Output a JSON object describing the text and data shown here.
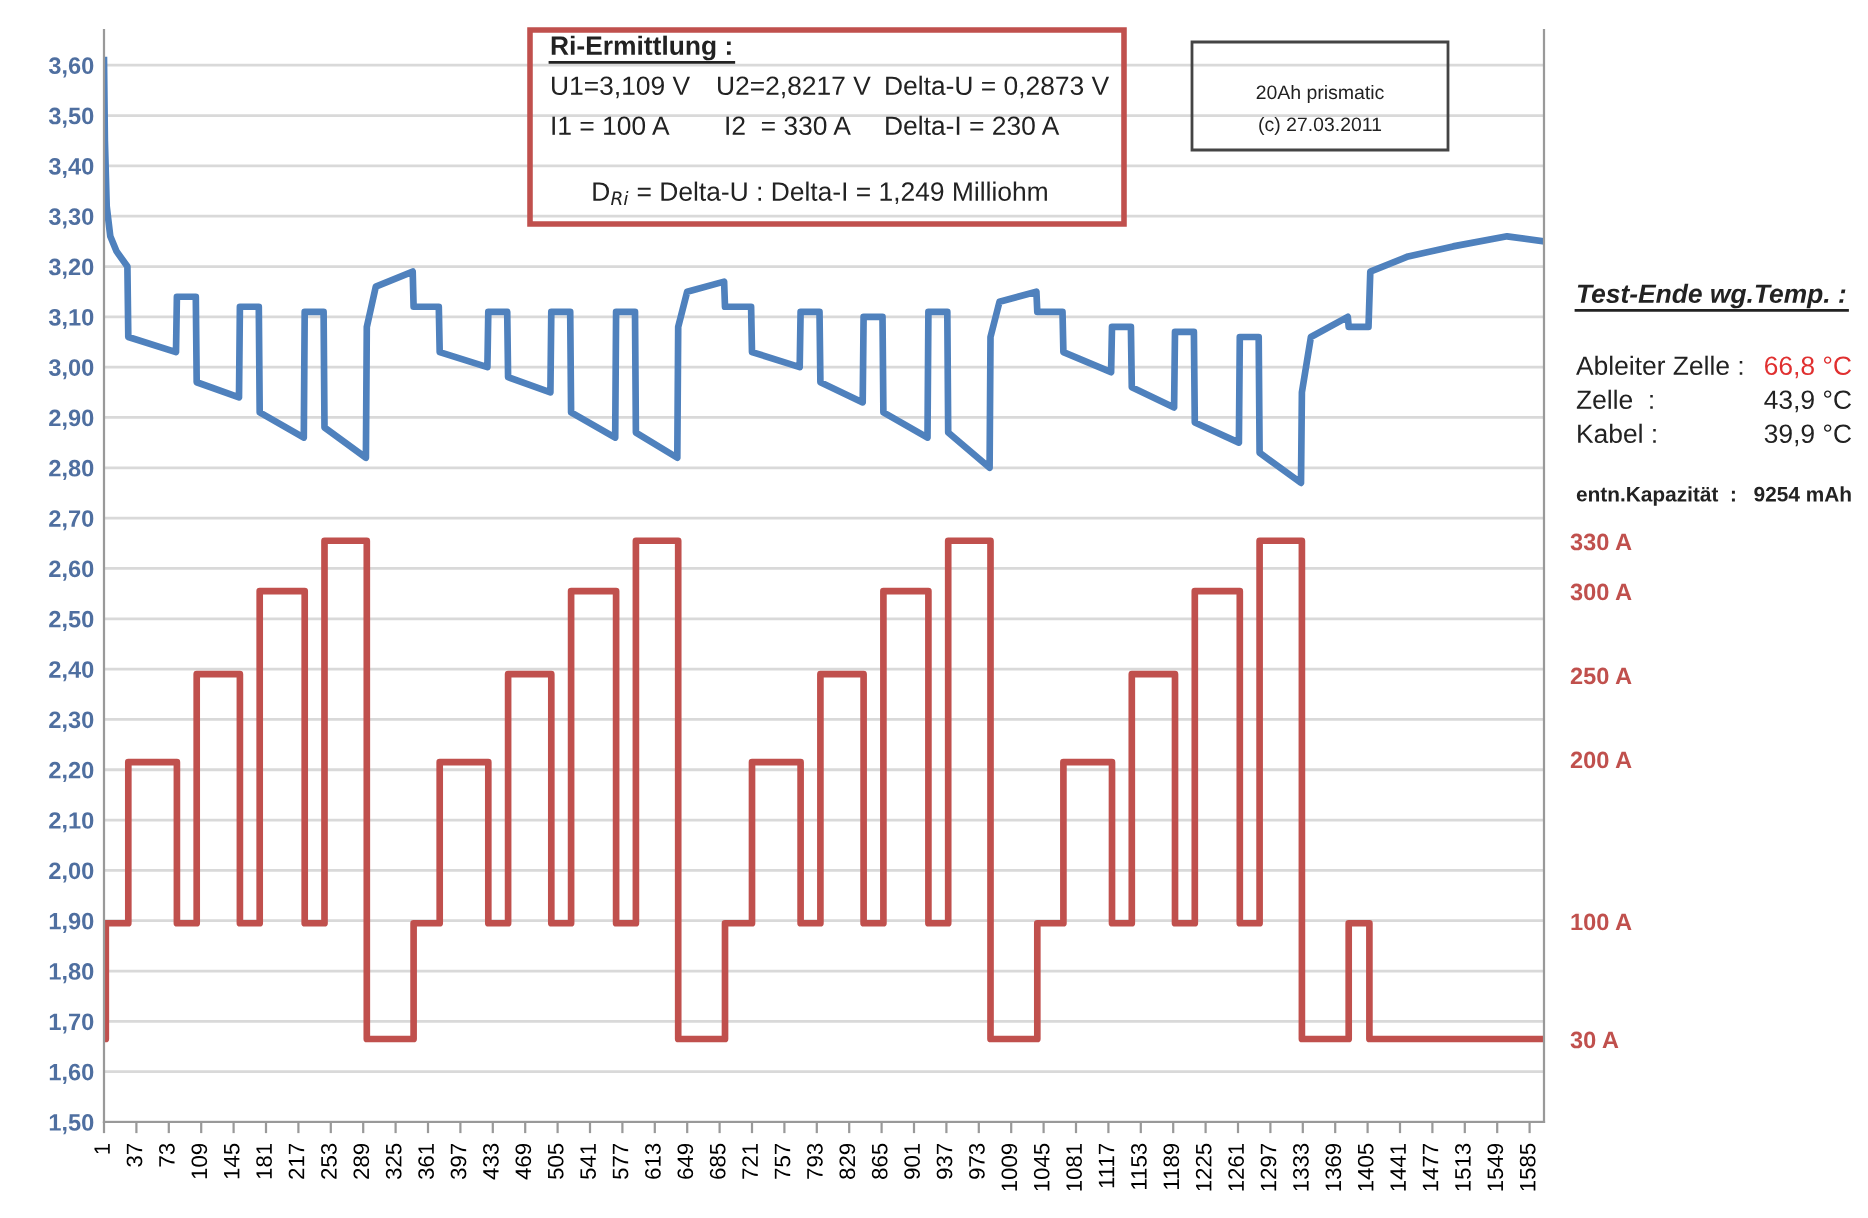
{
  "chart_data": {
    "type": "line",
    "x": [
      1,
      2,
      4,
      8,
      15,
      27,
      28,
      81,
      82,
      103,
      104,
      151,
      152,
      173,
      174,
      223,
      224,
      245,
      246,
      292,
      293,
      303,
      344,
      345,
      373,
      374,
      427,
      428,
      449,
      450,
      497,
      498,
      519,
      520,
      569,
      570,
      591,
      592,
      638,
      639,
      649,
      690,
      691,
      720,
      721,
      774,
      775,
      796,
      797,
      844,
      845,
      866,
      867,
      916,
      917,
      938,
      939,
      985,
      986,
      996,
      1037,
      1038,
      1066,
      1067,
      1120,
      1121,
      1142,
      1143,
      1190,
      1191,
      1212,
      1213,
      1262,
      1263,
      1284,
      1285,
      1331,
      1332,
      1342,
      1383,
      1384,
      1406,
      1408,
      1450,
      1500,
      1560,
      1601
    ],
    "series": [
      {
        "color": "#4f81bd",
        "values": [
          3.61,
          3.45,
          3.32,
          3.26,
          3.23,
          3.2,
          3.06,
          3.03,
          3.14,
          3.14,
          2.97,
          2.94,
          3.12,
          3.12,
          2.91,
          2.86,
          3.11,
          3.11,
          2.88,
          2.82,
          3.08,
          3.16,
          3.19,
          3.12,
          3.12,
          3.03,
          3.0,
          3.11,
          3.11,
          2.98,
          2.95,
          3.11,
          3.11,
          2.91,
          2.86,
          3.11,
          3.11,
          2.87,
          2.82,
          3.08,
          3.15,
          3.17,
          3.12,
          3.12,
          3.03,
          3.0,
          3.11,
          3.11,
          2.97,
          2.93,
          3.1,
          3.1,
          2.91,
          2.86,
          3.11,
          3.11,
          2.87,
          2.8,
          3.06,
          3.13,
          3.15,
          3.11,
          3.11,
          3.03,
          2.99,
          3.08,
          3.08,
          2.96,
          2.92,
          3.07,
          3.07,
          2.89,
          2.85,
          3.06,
          3.06,
          2.83,
          2.77,
          2.95,
          3.06,
          3.1,
          3.08,
          3.08,
          3.19,
          3.22,
          3.24,
          3.26,
          3.25
        ]
      },
      {
        "type": "step",
        "color": "#c0504d",
        "x": [
          1,
          3,
          28,
          82,
          104,
          152,
          174,
          224,
          246,
          293,
          345,
          374,
          428,
          450,
          498,
          520,
          570,
          592,
          639,
          691,
          721,
          775,
          797,
          845,
          867,
          917,
          939,
          986,
          1038,
          1067,
          1121,
          1143,
          1191,
          1213,
          1263,
          1285,
          1332,
          1384,
          1407,
          1601
        ],
        "values": [
          1.665,
          1.895,
          2.215,
          1.895,
          2.39,
          1.895,
          2.555,
          1.895,
          2.655,
          1.665,
          1.895,
          2.215,
          1.895,
          2.39,
          1.895,
          2.555,
          1.895,
          2.655,
          1.665,
          1.895,
          2.215,
          1.895,
          2.39,
          1.895,
          2.555,
          1.895,
          2.655,
          1.665,
          1.895,
          2.215,
          1.895,
          2.39,
          1.895,
          2.555,
          1.895,
          2.655,
          1.665,
          1.895,
          1.665,
          1.665
        ]
      }
    ],
    "xlim": [
      1,
      1601
    ],
    "xticks": [
      1,
      37,
      73,
      109,
      145,
      181,
      217,
      253,
      289,
      325,
      361,
      397,
      433,
      469,
      505,
      541,
      577,
      613,
      649,
      685,
      721,
      757,
      793,
      829,
      865,
      901,
      937,
      973,
      1009,
      1045,
      1081,
      1117,
      1153,
      1189,
      1225,
      1261,
      1297,
      1333,
      1369,
      1405,
      1441,
      1477,
      1513,
      1549,
      1585
    ],
    "ylim": [
      1.5,
      3.67
    ],
    "yticks": [
      {
        "value": 1.5,
        "label": "1,50"
      },
      {
        "value": 1.6,
        "label": "1,60"
      },
      {
        "value": 1.7,
        "label": "1,70"
      },
      {
        "value": 1.8,
        "label": "1,80"
      },
      {
        "value": 1.9,
        "label": "1,90"
      },
      {
        "value": 2.0,
        "label": "2,00"
      },
      {
        "value": 2.1,
        "label": "2,10"
      },
      {
        "value": 2.2,
        "label": "2,20"
      },
      {
        "value": 2.3,
        "label": "2,30"
      },
      {
        "value": 2.4,
        "label": "2,40"
      },
      {
        "value": 2.5,
        "label": "2,50"
      },
      {
        "value": 2.6,
        "label": "2,60"
      },
      {
        "value": 2.7,
        "label": "2,70"
      },
      {
        "value": 2.8,
        "label": "2,80"
      },
      {
        "value": 2.9,
        "label": "2,90"
      },
      {
        "value": 3.0,
        "label": "3,00"
      },
      {
        "value": 3.1,
        "label": "3,10"
      },
      {
        "value": 3.2,
        "label": "3,20"
      },
      {
        "value": 3.3,
        "label": "3,30"
      },
      {
        "value": 3.4,
        "label": "3,40"
      },
      {
        "value": 3.5,
        "label": "3,50"
      },
      {
        "value": 3.6,
        "label": "3,60"
      }
    ],
    "grid": "y",
    "legend": false,
    "marker": "none",
    "line_style": "solid",
    "annotations": [
      "Ri-Ermittlung :",
      "U1=3,109 V",
      "U2=2,8217 V",
      "Delta-U = 0,2873 V",
      "I1 = 100 A",
      "I2  = 330 A",
      "Delta-I = 230 A",
      "D$_{Ri}$ = Delta-U : Delta-I = 1,249 Milliohm",
      "20Ah prismatic",
      "(c) 27.03.2011",
      "Test-Ende wg.Temp. :",
      "Ableiter Zelle :",
      "66,8 °C",
      "Zelle  :",
      "43,9 °C",
      "Kabel :",
      "39,9 °C",
      "entn.Kapazität  :",
      "9254 mAh",
      "330 A",
      "300 A",
      "250 A",
      "200 A",
      "100 A",
      "30 A"
    ]
  }
}
